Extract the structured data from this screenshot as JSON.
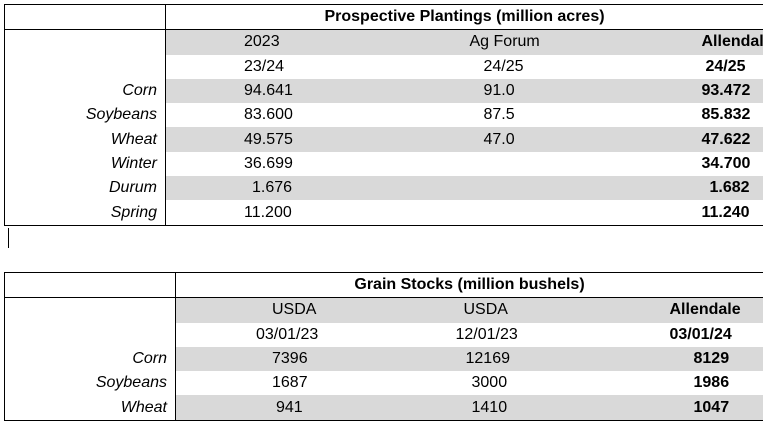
{
  "table1": {
    "title": "Prospective Plantings (million acres)",
    "headers": [
      "2023",
      "Ag Forum",
      "Allendale"
    ],
    "subheaders": [
      "23/24",
      "24/25",
      "24/25"
    ],
    "rows": [
      {
        "label": "Corn",
        "v1": "94.641",
        "v2": "91.0",
        "v3": "93.472"
      },
      {
        "label": "Soybeans",
        "v1": "83.600",
        "v2": "87.5",
        "v3": "85.832"
      },
      {
        "label": "Wheat",
        "v1": "49.575",
        "v2": "47.0",
        "v3": "47.622"
      },
      {
        "label": "Winter",
        "v1": "36.699",
        "v2": "",
        "v3": "34.700"
      },
      {
        "label": "Durum",
        "v1": "1.676",
        "v2": "",
        "v3": "1.682"
      },
      {
        "label": "Spring",
        "v1": "11.200",
        "v2": "",
        "v3": "11.240"
      }
    ]
  },
  "table2": {
    "title": "Grain Stocks (million bushels)",
    "headers": [
      "USDA",
      "USDA",
      "Allendale"
    ],
    "subheaders": [
      "03/01/23",
      "12/01/23",
      "03/01/24"
    ],
    "rows": [
      {
        "label": "Corn",
        "v1": "7396",
        "v2": "12169",
        "v3": "8129"
      },
      {
        "label": "Soybeans",
        "v1": "1687",
        "v2": "3000",
        "v3": "1986"
      },
      {
        "label": "Wheat",
        "v1": "941",
        "v2": "1410",
        "v3": "1047"
      }
    ]
  }
}
